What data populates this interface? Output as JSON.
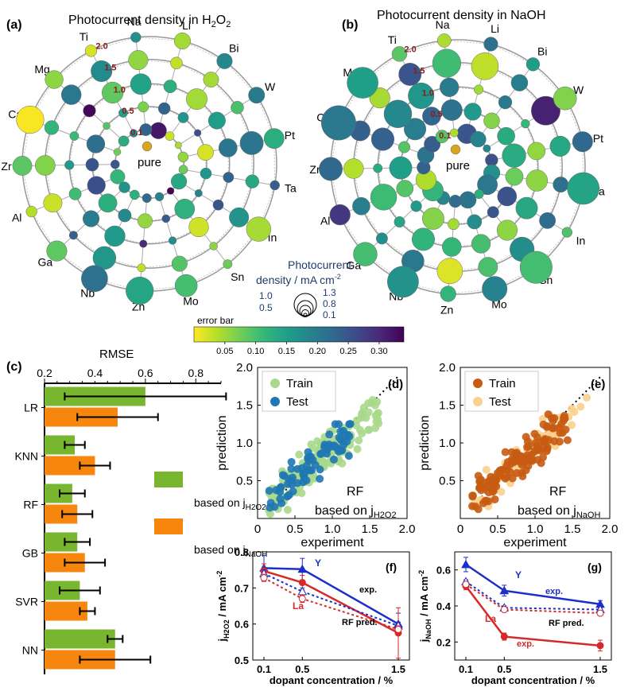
{
  "colors": {
    "colormap": [
      "#fde725",
      "#b5de2b",
      "#6ece58",
      "#35b779",
      "#1f9e89",
      "#26828e",
      "#31688e",
      "#3e4989",
      "#482878",
      "#440154"
    ],
    "train_green": "#a9d98c",
    "test_blue": "#1f77b4",
    "train_orange": "#c75b12",
    "test_peach": "#f9d08c",
    "bar_green": "#77b62e",
    "bar_orange": "#f7860f",
    "line_blue": "#1c2fc9",
    "line_red": "#d62a2a",
    "ring_label": "#8b1a1a",
    "legend_label": "#1f3b6e"
  },
  "chart_data": [
    {
      "type": "scatter",
      "panel_label": "(a)",
      "title_prefix": "Photocurrent density in H",
      "title_sub1": "2",
      "title_mid": "O",
      "title_sub2": "2",
      "center_label": "pure",
      "ring_labels": [
        "0.1",
        "0.5",
        "1.0",
        "1.5",
        "2.0"
      ],
      "elements": [
        "Li",
        "Bi",
        "W",
        "Pt",
        "Ta",
        "In",
        "Sn",
        "Mo",
        "Zn",
        "Nb",
        "Ga",
        "Al",
        "Zr",
        "Ca",
        "Mg",
        "Ti",
        "Na"
      ],
      "radial_axis": "dopant concentration / %",
      "size_encodes": "photocurrent density / mA cm-2",
      "color_encodes": "error bar"
    },
    {
      "type": "scatter",
      "panel_label": "(b)",
      "title": "Photocurrent density in NaOH",
      "center_label": "pure",
      "ring_labels": [
        "0.1",
        "0.5",
        "1.0",
        "1.5",
        "2.0"
      ],
      "elements": [
        "Li",
        "Bi",
        "W",
        "Pt",
        "Ta",
        "In",
        "Sn",
        "Mo",
        "Zn",
        "Nb",
        "Ga",
        "Al",
        "Zr",
        "Ca",
        "Mg",
        "Ti",
        "Na"
      ]
    },
    {
      "type": "legend",
      "size_title_1": "Photocurrent",
      "size_title_2": "density / mA cm",
      "size_title_sup": "-2",
      "size_values": [
        "1.3",
        "1.0",
        "0.8",
        "0.5",
        "0.1"
      ],
      "colorbar_label": "error bar",
      "colorbar_ticks": [
        0.05,
        0.1,
        0.15,
        0.2,
        0.25,
        0.3
      ],
      "colorbar_tick_labels": [
        "0.05",
        "0.10",
        "0.15",
        "0.20",
        "0.25",
        "0.30"
      ],
      "colorbar_range": [
        0,
        0.34
      ]
    },
    {
      "type": "bar",
      "panel_label": "(c)",
      "orientation": "horizontal",
      "xlabel": "RMSE",
      "xlim": [
        0.2,
        0.9
      ],
      "ticks": [
        0.2,
        0.4,
        0.6,
        0.8
      ],
      "tick_labels": [
        "0.2",
        "0.4",
        "0.6",
        "0.8"
      ],
      "categories": [
        "LR",
        "KNN",
        "RF",
        "GB",
        "SVR",
        "NN"
      ],
      "series": [
        {
          "name_prefix": "based on j",
          "name_sub": "H2O2",
          "values": [
            0.6,
            0.32,
            0.31,
            0.33,
            0.34,
            0.48
          ],
          "errors": [
            0.32,
            0.04,
            0.05,
            0.05,
            0.08,
            0.03
          ]
        },
        {
          "name_prefix": "based on j",
          "name_sub": "NaOH",
          "values": [
            0.49,
            0.4,
            0.33,
            0.36,
            0.37,
            0.48
          ],
          "errors": [
            0.16,
            0.06,
            0.06,
            0.08,
            0.03,
            0.14
          ]
        }
      ]
    },
    {
      "type": "scatter",
      "panel_label": "(d)",
      "xlabel": "experiment",
      "ylabel": "prediction",
      "xlim": [
        0,
        2.0
      ],
      "ylim": [
        0,
        2.0
      ],
      "ticks": [
        "0.5",
        "1.0",
        "1.5",
        "2.0"
      ],
      "x_ticks": [
        "0",
        "0.5",
        "1.0",
        "1.5",
        "2.0"
      ],
      "legend": [
        "Train",
        "Test"
      ],
      "model_label": "RF",
      "based_prefix": "based on j",
      "based_sub": "H2O2"
    },
    {
      "type": "scatter",
      "panel_label": "(e)",
      "xlabel": "experiment",
      "ylabel": "prediction",
      "xlim": [
        0,
        2.0
      ],
      "ylim": [
        0,
        2.0
      ],
      "ticks": [
        "0.5",
        "1.0",
        "1.5",
        "2.0"
      ],
      "x_ticks": [
        "0",
        "0.5",
        "1.0",
        "1.5",
        "2.0"
      ],
      "legend": [
        "Train",
        "Test"
      ],
      "model_label": "RF",
      "based_prefix": "based on j",
      "based_sub": "NaOH"
    },
    {
      "type": "line",
      "panel_label": "(f)",
      "xlabel": "dopant concentration / %",
      "ylabel_prefix": "j",
      "ylabel_sub": "H2O2",
      "ylabel_unit": " / mA cm",
      "ylabel_sup": "-2",
      "x": [
        0.1,
        0.5,
        1.5
      ],
      "x_tick_labels": [
        "0.1",
        "0.5",
        "1.5"
      ],
      "ylim": [
        0.5,
        0.8
      ],
      "y_tick_labels": [
        "0.5",
        "0.6",
        "0.7",
        "0.8"
      ],
      "series": [
        {
          "name": "Y",
          "style": "exp",
          "values": [
            0.755,
            0.752,
            0.6
          ],
          "errors": [
            0.035,
            0.03,
            0.03
          ]
        },
        {
          "name": "La",
          "style": "exp",
          "values": [
            0.747,
            0.715,
            0.575
          ],
          "errors": [
            0.02,
            0.02,
            0.07
          ]
        },
        {
          "name": "Y",
          "style": "pred",
          "values": [
            0.74,
            0.69,
            0.595
          ],
          "errors": [
            0.01,
            0.01,
            0.01
          ]
        },
        {
          "name": "La",
          "style": "pred",
          "values": [
            0.728,
            0.67,
            0.585
          ],
          "errors": [
            0.01,
            0.01,
            0.01
          ]
        }
      ],
      "annotations": {
        "Y": "Y",
        "La": "La",
        "exp": "exp.",
        "pred": "RF pred."
      }
    },
    {
      "type": "line",
      "panel_label": "(g)",
      "xlabel": "dopant concentration / %",
      "ylabel_prefix": "j",
      "ylabel_sub": "NaOH",
      "ylabel_unit": " / mA cm",
      "ylabel_sup": "-2",
      "x": [
        0.1,
        0.5,
        1.5
      ],
      "x_tick_labels": [
        "0.1",
        "0.5",
        "1.5"
      ],
      "ylim": [
        0.1,
        0.7
      ],
      "y_tick_labels": [
        "0.2",
        "0.4",
        "0.6"
      ],
      "series": [
        {
          "name": "Y",
          "style": "exp",
          "values": [
            0.63,
            0.485,
            0.41
          ],
          "errors": [
            0.04,
            0.03,
            0.02
          ]
        },
        {
          "name": "La",
          "style": "exp",
          "values": [
            0.51,
            0.23,
            0.18
          ],
          "errors": [
            0.02,
            0.02,
            0.03
          ]
        },
        {
          "name": "Y",
          "style": "pred",
          "values": [
            0.535,
            0.39,
            0.38
          ],
          "errors": [
            0.01,
            0.01,
            0.01
          ]
        },
        {
          "name": "La",
          "style": "pred",
          "values": [
            0.52,
            0.38,
            0.36
          ],
          "errors": [
            0.01,
            0.01,
            0.01
          ]
        }
      ],
      "annotations": {
        "Y": "Y",
        "La": "La",
        "exp": "exp.",
        "pred": "RF pred."
      }
    }
  ]
}
